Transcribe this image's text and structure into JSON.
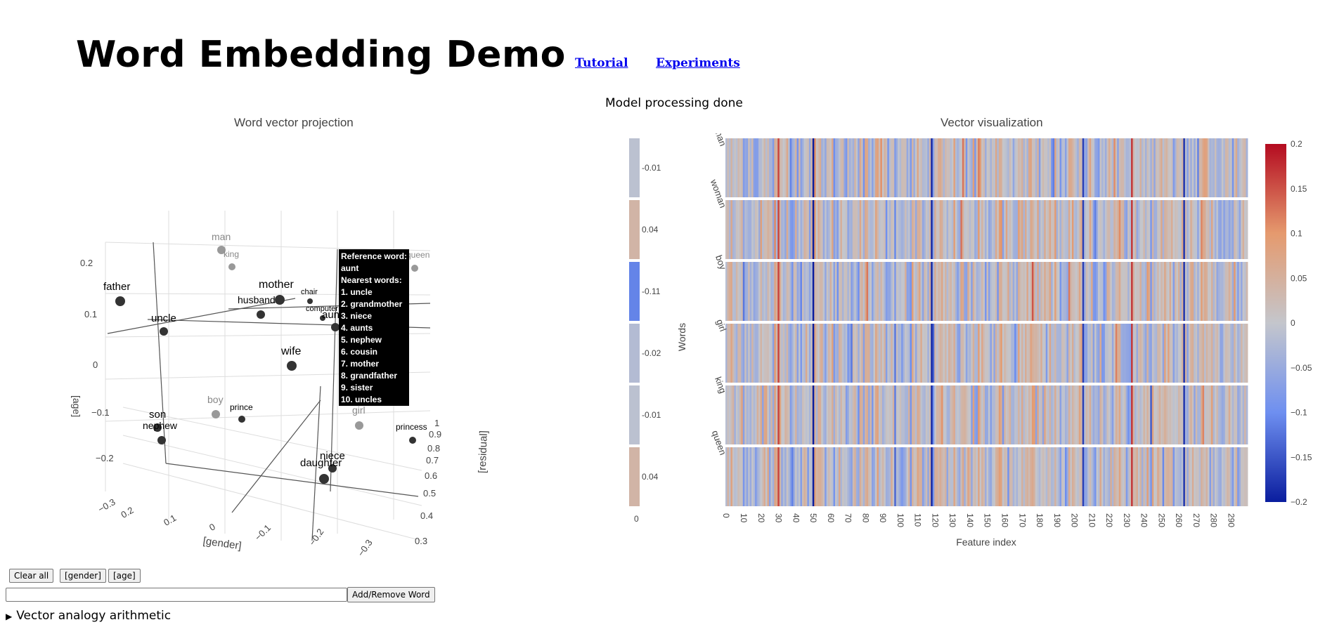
{
  "header": {
    "title": "Word Embedding Demo",
    "links": [
      "Tutorial",
      "Experiments"
    ],
    "status": "Model processing done"
  },
  "projection": {
    "title": "Word vector projection",
    "axis_titles": {
      "x": "[gender]",
      "y": "[age]",
      "z": "[residual]"
    },
    "y_ticks": [
      "0.2",
      "0.1",
      "0",
      "−0.1",
      "−0.2",
      "−0.3"
    ],
    "x_ticks": [
      "0.2",
      "0.1",
      "0",
      "−0.1",
      "−0.2",
      "−0.3"
    ],
    "z_ticks": [
      "1",
      "0.9",
      "0.8",
      "0.7",
      "0.6",
      "0.5",
      "0.4",
      "0.3"
    ],
    "words": [
      {
        "word": "man",
        "style": "gray"
      },
      {
        "word": "king",
        "style": "gray"
      },
      {
        "word": "queen",
        "style": "gray"
      },
      {
        "word": "father",
        "style": "dark"
      },
      {
        "word": "mother",
        "style": "dark"
      },
      {
        "word": "husband",
        "style": "dark"
      },
      {
        "word": "chair",
        "style": "dark"
      },
      {
        "word": "computer",
        "style": "dark"
      },
      {
        "word": "aunt",
        "style": "dark"
      },
      {
        "word": "uncle",
        "style": "dark"
      },
      {
        "word": "wife",
        "style": "dark"
      },
      {
        "word": "boy",
        "style": "gray"
      },
      {
        "word": "prince",
        "style": "dark"
      },
      {
        "word": "girl",
        "style": "gray"
      },
      {
        "word": "son",
        "style": "dark"
      },
      {
        "word": "nephew",
        "style": "dark"
      },
      {
        "word": "princess",
        "style": "dark"
      },
      {
        "word": "niece",
        "style": "dark"
      },
      {
        "word": "daughter",
        "style": "dark"
      }
    ],
    "tooltip": {
      "ref_label": "Reference word:",
      "ref_word": "aunt",
      "nearest_label": "Nearest words:",
      "nearest": [
        "1. uncle",
        "2. grandmother",
        "3. niece",
        "4. aunts",
        "5. nephew",
        "6. cousin",
        "7. mother",
        "8. grandfather",
        "9. sister",
        "10. uncles"
      ]
    }
  },
  "vectorviz": {
    "title": "Vector visualization",
    "side_x_tick": "0",
    "ylabel": "Words",
    "xlabel": "Feature index"
  },
  "controls": {
    "clear_all": "Clear all",
    "gender": "[gender]",
    "age": "[age]",
    "add_remove": "Add/Remove Word",
    "input_value": "",
    "analogy": "Vector analogy arithmetic"
  },
  "chart_data": {
    "type": "heatmap",
    "title": "Vector visualization",
    "xlabel": "Feature index",
    "ylabel": "Words",
    "words": [
      "man",
      "woman",
      "boy",
      "girl",
      "king",
      "queen"
    ],
    "side_values": [
      -0.01,
      0.04,
      -0.11,
      -0.02,
      -0.01,
      0.04
    ],
    "x_ticks": [
      0,
      10,
      20,
      30,
      40,
      50,
      60,
      70,
      80,
      90,
      100,
      110,
      120,
      130,
      140,
      150,
      160,
      170,
      180,
      190,
      200,
      210,
      220,
      230,
      240,
      250,
      260,
      270,
      280,
      290
    ],
    "n_features": 300,
    "colorscale": {
      "min": -0.2,
      "max": 0.2,
      "colors": [
        "#0a1d9e",
        "#6e8ff0",
        "#c4c6cc",
        "#e59a6e",
        "#b40b20"
      ]
    },
    "colorbar_ticks": [
      "0.2",
      "0.15",
      "0.1",
      "0.05",
      "0",
      "−0.05",
      "−0.1",
      "−0.15",
      "−0.2"
    ]
  }
}
